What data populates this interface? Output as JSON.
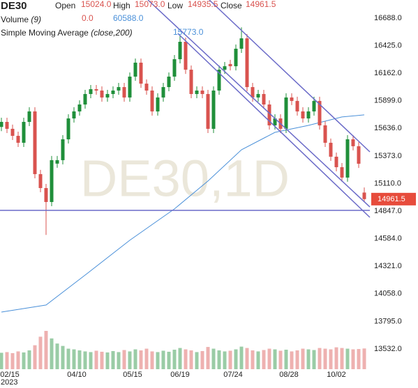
{
  "chart_data": {
    "type": "candlestick",
    "title": "DE30",
    "header": {
      "open_label": "Open",
      "open": "15024.0",
      "high_label": "High",
      "high": "15073.0",
      "low_label": "Low",
      "low": "14935.5",
      "close_label": "Close",
      "close": "14961.5",
      "volume_label": "Volume",
      "volume_param": "(9)",
      "volume_a": "0.0",
      "volume_b": "60588.0",
      "sma_label": "Simple Moving Average",
      "sma_param": "(close,200)"
    },
    "annotation": "15773.0",
    "watermark": "DE30,1D",
    "ylim": [
      13339.3,
      16860.7
    ],
    "yticks": [
      {
        "value": 16688,
        "label": "16688.0"
      },
      {
        "value": 16425,
        "label": "16425.0"
      },
      {
        "value": 16162,
        "label": "16162.0"
      },
      {
        "value": 15899,
        "label": "15899.0"
      },
      {
        "value": 15636,
        "label": "15636.0"
      },
      {
        "value": 15373,
        "label": "15373.0"
      },
      {
        "value": 15110,
        "label": "15110.0"
      },
      {
        "value": 14847,
        "label": "14847.0"
      },
      {
        "value": 14584,
        "label": "14584.0"
      },
      {
        "value": 14321,
        "label": "14321.0"
      },
      {
        "value": 14058,
        "label": "14058.0"
      },
      {
        "value": 13795,
        "label": "13795.0"
      },
      {
        "value": 13532,
        "label": "13532.0"
      }
    ],
    "xlim": [
      -0.25,
      66
    ],
    "xticks": [
      {
        "value": 1.5,
        "label": "02/15"
      },
      {
        "value": 13.5,
        "label": "04/10"
      },
      {
        "value": 23.5,
        "label": "05/15"
      },
      {
        "value": 32,
        "label": "06/19"
      },
      {
        "value": 41.5,
        "label": "07/24"
      },
      {
        "value": 51.5,
        "label": "08/28"
      },
      {
        "value": 60,
        "label": "10/02"
      }
    ],
    "year_label": "2023",
    "up_color": "#1f8f3a",
    "down_color": "#d9534f",
    "open": [
      15650,
      15698,
      15632,
      15565,
      15499,
      15698,
      15798,
      15200,
      15067,
      14934,
      15300,
      15333,
      15532,
      15731,
      15798,
      15864,
      15964,
      16010,
      15997,
      15931,
      15964,
      15997,
      16030,
      15931,
      16130,
      16263,
      16063,
      15997,
      15798,
      15931,
      16030,
      16130,
      16296,
      16462,
      16196,
      15964,
      15997,
      15964,
      15632,
      15997,
      16196,
      16250,
      16229,
      16396,
      16495,
      16030,
      15931,
      15964,
      15864,
      15665,
      15731,
      15632,
      15931,
      15898,
      15798,
      15731,
      15798,
      15898,
      15665,
      15499,
      15366,
      15266,
      15167,
      15532,
      15466,
      15024
    ],
    "high": [
      15738,
      15738,
      15672,
      15605,
      15738,
      15838,
      15838,
      15240,
      15107,
      15373,
      15373,
      15572,
      15771,
      15838,
      15904,
      16004,
      16050,
      16050,
      16037,
      16004,
      16037,
      16070,
      16070,
      16170,
      16303,
      16303,
      16103,
      16037,
      15971,
      16070,
      16170,
      16336,
      16520,
      16502,
      16236,
      16037,
      16037,
      16004,
      16037,
      16236,
      16269,
      16290,
      16436,
      16600,
      16535,
      16070,
      16004,
      16004,
      15904,
      15771,
      15771,
      15971,
      15971,
      15938,
      15838,
      15838,
      15938,
      15938,
      15705,
      15539,
      15406,
      15306,
      15572,
      15572,
      15506,
      15073
    ],
    "low": [
      15610,
      15592,
      15525,
      15459,
      15459,
      15658,
      15160,
      15027,
      14620,
      14894,
      15260,
      15293,
      15492,
      15691,
      15758,
      15824,
      15924,
      15957,
      15891,
      15891,
      15924,
      15957,
      15891,
      15891,
      16090,
      16023,
      15957,
      15758,
      15758,
      15891,
      15990,
      16090,
      16256,
      16156,
      15924,
      15924,
      15924,
      15592,
      15592,
      15957,
      16156,
      16189,
      16189,
      16356,
      15990,
      15891,
      15891,
      15824,
      15625,
      15625,
      15592,
      15592,
      15858,
      15758,
      15691,
      15691,
      15758,
      15625,
      15459,
      15326,
      15226,
      15127,
      15127,
      15426,
      15259,
      14935.5
    ],
    "close": [
      15698,
      15632,
      15565,
      15499,
      15698,
      15798,
      15200,
      15067,
      14934,
      15333,
      15333,
      15532,
      15731,
      15798,
      15864,
      15964,
      16010,
      15997,
      15931,
      15964,
      15997,
      16030,
      15931,
      16130,
      16263,
      16063,
      15997,
      15798,
      15931,
      16030,
      16130,
      16296,
      16462,
      16196,
      15964,
      15997,
      15964,
      15632,
      15997,
      16196,
      16229,
      16229,
      16396,
      16495,
      16030,
      15931,
      15964,
      15864,
      15665,
      15731,
      15632,
      15931,
      15898,
      15798,
      15731,
      15798,
      15898,
      15665,
      15499,
      15366,
      15266,
      15167,
      15532,
      15466,
      15299,
      14961.5
    ],
    "volume": [
      48000,
      50000,
      47000,
      52000,
      49000,
      55000,
      70000,
      95000,
      112000,
      90000,
      75000,
      68000,
      60000,
      58000,
      55000,
      52000,
      50000,
      54000,
      51000,
      49000,
      53000,
      50000,
      56000,
      52000,
      58000,
      55000,
      60000,
      52000,
      50000,
      54000,
      51000,
      57000,
      62000,
      58000,
      55000,
      50000,
      53000,
      65000,
      60000,
      55000,
      52000,
      54000,
      58000,
      66000,
      62000,
      55000,
      52000,
      56000,
      60000,
      58000,
      54000,
      57000,
      52000,
      55000,
      60000,
      58000,
      56000,
      62000,
      60000,
      58000,
      64000,
      62000,
      60000,
      58000,
      59000,
      60588
    ],
    "sma": {
      "color": "#4a90d9",
      "x": [
        0,
        8,
        15,
        23,
        31,
        37,
        43,
        49,
        55,
        61,
        65
      ],
      "values": [
        13884,
        13951,
        14237,
        14569,
        14868,
        15134,
        15432,
        15598,
        15665,
        15745,
        15765
      ]
    },
    "trendlines": [
      {
        "color": "#6a6ac8",
        "x": [
          37.25,
          66
        ],
        "values": [
          16860.7,
          15412
        ]
      },
      {
        "color": "#6a6ac8",
        "x": [
          26.25,
          66
        ],
        "values": [
          16860.7,
          14887
        ]
      },
      {
        "color": "#6a6ac8",
        "x": [
          31.6,
          66
        ],
        "values": [
          16542,
          14788
        ]
      },
      {
        "color": "#6a6ac8",
        "x": [
          -0.25,
          66
        ],
        "values": [
          14854,
          14854
        ]
      }
    ],
    "last_price": 14961.5,
    "last_price_color": "#e74c3c"
  }
}
